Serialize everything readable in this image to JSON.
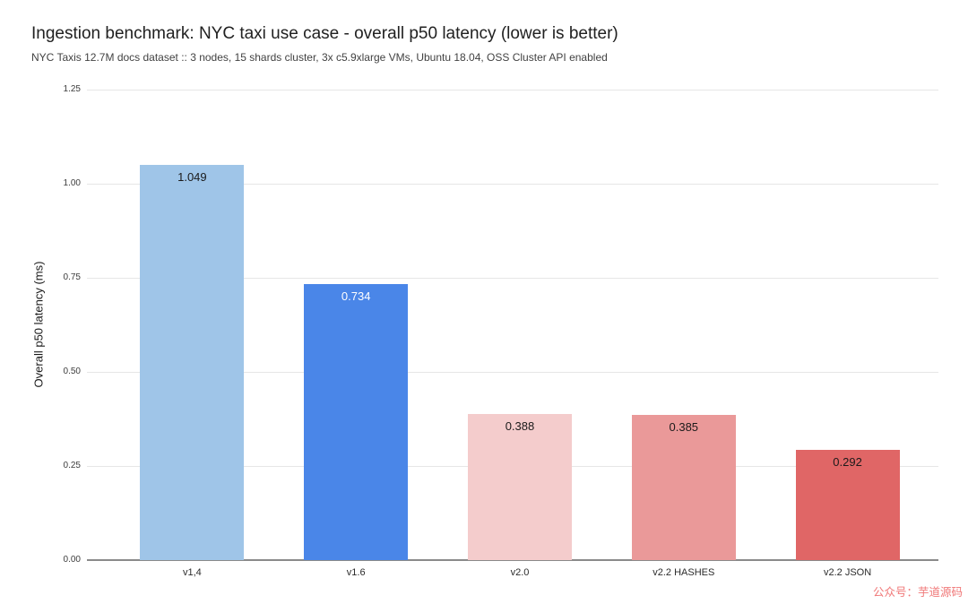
{
  "chart_data": {
    "type": "bar",
    "title": "Ingestion benchmark: NYC taxi use case - overall p50 latency (lower is better)",
    "subtitle": "NYC Taxis 12.7M docs dataset :: 3 nodes, 15 shards cluster, 3x c5.9xlarge VMs, Ubuntu 18.04, OSS Cluster API enabled",
    "categories": [
      "v1,4",
      "v1.6",
      "v2.0",
      "v2.2 HASHES",
      "v2.2 JSON"
    ],
    "values": [
      1.049,
      0.734,
      0.388,
      0.385,
      0.292
    ],
    "value_labels": [
      "1.049",
      "0.734",
      "0.388",
      "0.385",
      "0.292"
    ],
    "bar_colors": [
      "#9fc5e8",
      "#4a86e8",
      "#f4cccc",
      "#ea9999",
      "#e06666"
    ],
    "value_label_colors": [
      "#1a1a1a",
      "#ffffff",
      "#1a1a1a",
      "#1a1a1a",
      "#1a1a1a"
    ],
    "xlabel": "",
    "ylabel": "Overall p50 latency (ms)",
    "ylim": [
      0,
      1.25
    ],
    "yticks": [
      "0.00",
      "0.25",
      "0.50",
      "0.75",
      "1.00",
      "1.25"
    ],
    "grid": true,
    "legend_position": "none",
    "gridline_color": "#e6e6e6",
    "baseline_color": "#8a8a8a"
  },
  "watermark": {
    "text": "公众号：芋道源码",
    "color": "#f07878"
  }
}
